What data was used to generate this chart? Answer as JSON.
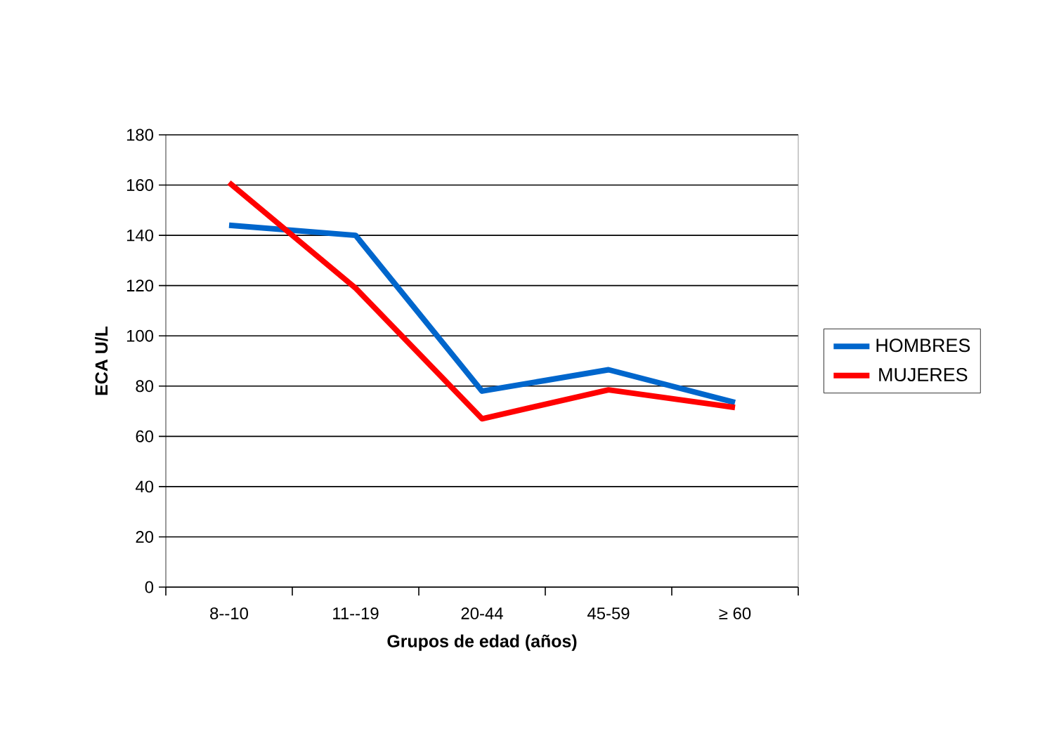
{
  "chart_data": {
    "type": "line",
    "xlabel": "Grupos de edad (años)",
    "ylabel": "ECA U/L",
    "categories": [
      "8--10",
      "11--19",
      "20-44",
      "45-59",
      "≥ 60"
    ],
    "series": [
      {
        "name": "HOMBRES",
        "color": "#0066cc",
        "values": [
          144,
          140,
          78,
          86.5,
          73.5
        ]
      },
      {
        "name": "MUJERES",
        "color": "#ff0000",
        "values": [
          161,
          119,
          67,
          78.5,
          71.5
        ]
      }
    ],
    "ylim": [
      0,
      180
    ],
    "yticks": [
      0,
      20,
      40,
      60,
      80,
      100,
      120,
      140,
      160,
      180
    ],
    "grid": "y",
    "legend": "right",
    "line_style": "solid"
  }
}
